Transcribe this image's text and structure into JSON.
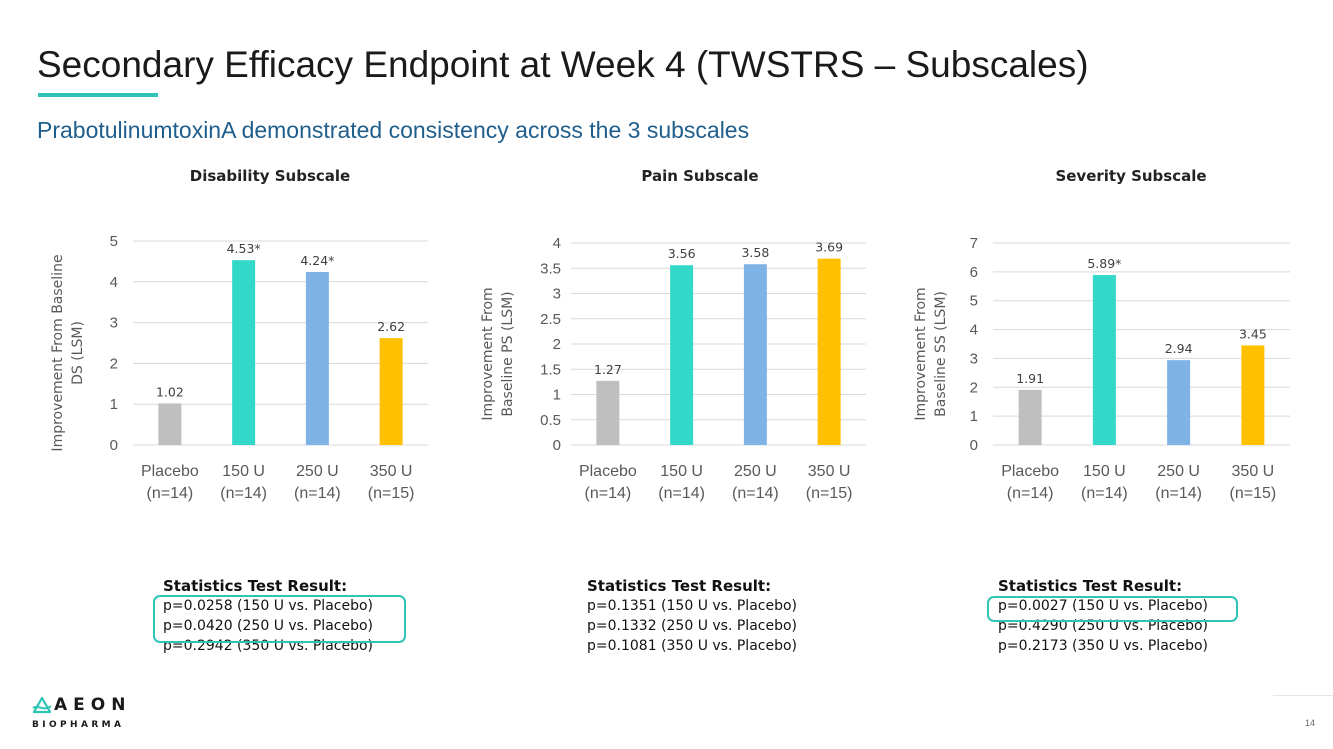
{
  "header": {
    "title": "Secondary Efficacy Endpoint at Week 4 (TWSTRS – Subscales)",
    "subtitle": "PrabotulinumtoxinA demonstrated consistency across the 3 subscales"
  },
  "colors": {
    "accent": "#2ec4b6",
    "subtitle": "#1f5e8c",
    "placebo": "#bfbfbf",
    "u150": "#33d9c8",
    "u250": "#7fb2e5",
    "u350": "#ffc000"
  },
  "chart_data": [
    {
      "type": "bar",
      "title": "Disability Subscale",
      "ylabel": [
        "Improvement From Baseline",
        "DS (LSM)"
      ],
      "categories": [
        [
          "Placebo",
          "(n=14)"
        ],
        [
          "150 U",
          "(n=14)"
        ],
        [
          "250 U",
          "(n=14)"
        ],
        [
          "350 U",
          "(n=15)"
        ]
      ],
      "values": [
        1.02,
        4.53,
        4.24,
        2.62
      ],
      "labels": [
        "1.02",
        "4.53*",
        "4.24*",
        "2.62"
      ],
      "ylim": [
        0,
        5
      ],
      "yticks": [
        "0",
        "1",
        "2",
        "3",
        "4",
        "5"
      ],
      "grid": true
    },
    {
      "type": "bar",
      "title": "Pain Subscale",
      "ylabel": [
        "Improvement From",
        "Baseline PS (LSM)"
      ],
      "categories": [
        [
          "Placebo",
          "(n=14)"
        ],
        [
          "150 U",
          "(n=14)"
        ],
        [
          "250 U",
          "(n=14)"
        ],
        [
          "350 U",
          "(n=15)"
        ]
      ],
      "values": [
        1.27,
        3.56,
        3.58,
        3.69
      ],
      "labels": [
        "1.27",
        "3.56",
        "3.58",
        "3.69"
      ],
      "ylim": [
        0,
        4
      ],
      "yticks": [
        "0",
        "0.5",
        "1",
        "1.5",
        "2",
        "2.5",
        "3",
        "3.5",
        "4"
      ],
      "grid": true
    },
    {
      "type": "bar",
      "title": "Severity Subscale",
      "ylabel": [
        "Improvement From",
        "Baseline SS (LSM)"
      ],
      "categories": [
        [
          "Placebo",
          "(n=14)"
        ],
        [
          "150 U",
          "(n=14)"
        ],
        [
          "250 U",
          "(n=14)"
        ],
        [
          "350 U",
          "(n=15)"
        ]
      ],
      "values": [
        1.91,
        5.89,
        2.94,
        3.45
      ],
      "labels": [
        "1.91",
        "5.89*",
        "2.94",
        "3.45"
      ],
      "ylim": [
        0,
        7
      ],
      "yticks": [
        "0",
        "1",
        "2",
        "3",
        "4",
        "5",
        "6",
        "7"
      ],
      "grid": true
    }
  ],
  "stats": [
    {
      "heading": "Statistics Test Result:",
      "lines": [
        "p=0.0258 (150 U vs. Placebo)",
        "p=0.0420 (250 U vs. Placebo)",
        "p=0.2942 (350 U vs. Placebo)"
      ]
    },
    {
      "heading": "Statistics Test Result:",
      "lines": [
        "p=0.1351 (150 U vs. Placebo)",
        "p=0.1332 (250 U vs. Placebo)",
        "p=0.1081 (350 U vs. Placebo)"
      ]
    },
    {
      "heading": "Statistics Test Result:",
      "lines": [
        "p=0.0027 (150 U vs. Placebo)",
        "p=0.4290 (250 U vs. Placebo)",
        "p=0.2173 (350 U vs. Placebo)"
      ]
    }
  ],
  "footer": {
    "logo_word": "AEON",
    "logo_sub": "BIOPHARMA",
    "logo_icon": "aeon-triangle-icon",
    "page_number": "14"
  }
}
